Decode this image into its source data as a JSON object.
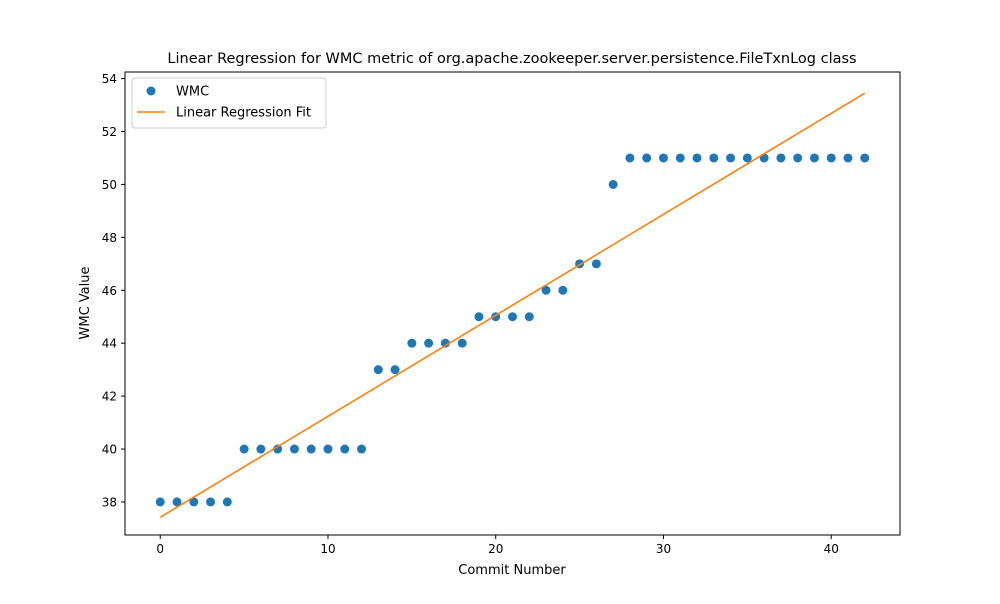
{
  "chart_data": {
    "type": "scatter",
    "title": "Linear Regression for WMC metric of org.apache.zookeeper.server.persistence.FileTxnLog class",
    "xlabel": "Commit Number",
    "ylabel": "WMC Value",
    "xlim": [
      -2.1,
      44.1
    ],
    "ylim": [
      36.75,
      54.25
    ],
    "xticks": [
      0,
      10,
      20,
      30,
      40
    ],
    "yticks": [
      38,
      40,
      42,
      44,
      46,
      48,
      50,
      52,
      54
    ],
    "grid": false,
    "legend_position": "top-left",
    "series": [
      {
        "name": "WMC",
        "kind": "scatter",
        "color": "#1f77b4",
        "x": [
          0,
          1,
          2,
          3,
          4,
          5,
          6,
          7,
          8,
          9,
          10,
          11,
          12,
          13,
          14,
          15,
          16,
          17,
          18,
          19,
          20,
          21,
          22,
          23,
          24,
          25,
          26,
          27,
          28,
          29,
          30,
          31,
          32,
          33,
          34,
          35,
          36,
          37,
          38,
          39,
          40,
          41,
          42
        ],
        "values": [
          38,
          38,
          38,
          38,
          38,
          40,
          40,
          40,
          40,
          40,
          40,
          40,
          40,
          43,
          43,
          44,
          44,
          44,
          44,
          45,
          45,
          45,
          45,
          46,
          46,
          47,
          47,
          50,
          51,
          51,
          51,
          51,
          51,
          51,
          51,
          51,
          51,
          51,
          51,
          51,
          51,
          51,
          51
        ]
      },
      {
        "name": "Linear Regression Fit",
        "kind": "line",
        "color": "#ff7f0e",
        "x": [
          0,
          42
        ],
        "values": [
          37.42,
          53.45
        ]
      }
    ]
  }
}
